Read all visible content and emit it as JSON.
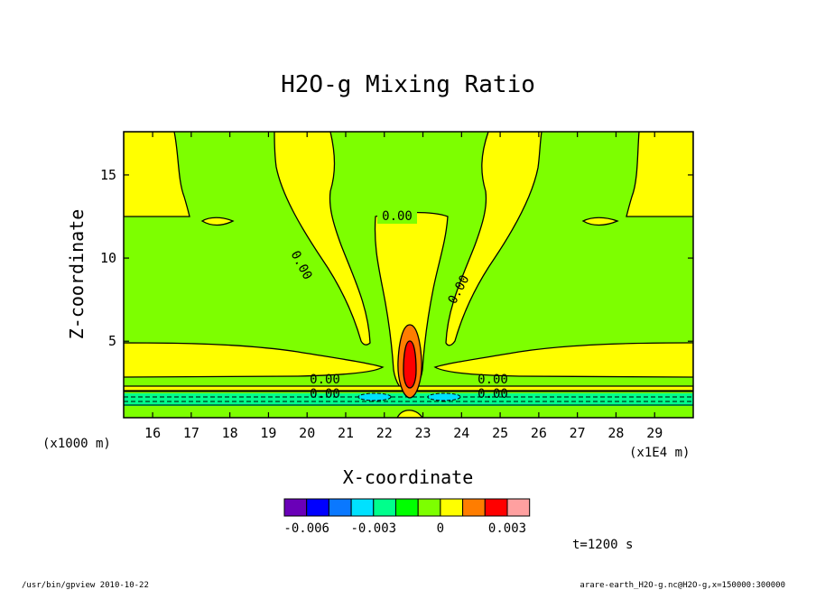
{
  "chart_data": {
    "type": "contour",
    "title": "H2O-g Mixing Ratio",
    "xlabel": "X-coordinate",
    "ylabel": "Z-coordinate",
    "x_unit": "(x1E4 m)",
    "y_unit": "(x1000 m)",
    "xlim": [
      15.25,
      30.0
    ],
    "ylim": [
      0.4,
      17.6
    ],
    "x_ticks": [
      16,
      17,
      18,
      19,
      20,
      21,
      22,
      23,
      24,
      25,
      26,
      27,
      28,
      29
    ],
    "y_ticks": [
      5,
      10,
      15
    ],
    "contour_labels": [
      "0.00",
      "0.00",
      "0.00",
      "0.00",
      "0.00",
      "0.00",
      "0.00"
    ],
    "colorbar": {
      "colors": [
        "#6a00b8",
        "#0000ff",
        "#0a78ff",
        "#00e1ff",
        "#00ff8c",
        "#00ff00",
        "#7dff00",
        "#ffff00",
        "#ff7d00",
        "#ff0000",
        "#ffa0a0"
      ],
      "tick_labels": [
        "-0.006",
        "-0.003",
        "0",
        "0.003"
      ]
    },
    "time_label": "t=1200 s",
    "footer_left": "/usr/bin/gpview  2010-10-22",
    "footer_right": "arare-earth_H2O-g.nc@H2O-g,x=150000:300000"
  }
}
